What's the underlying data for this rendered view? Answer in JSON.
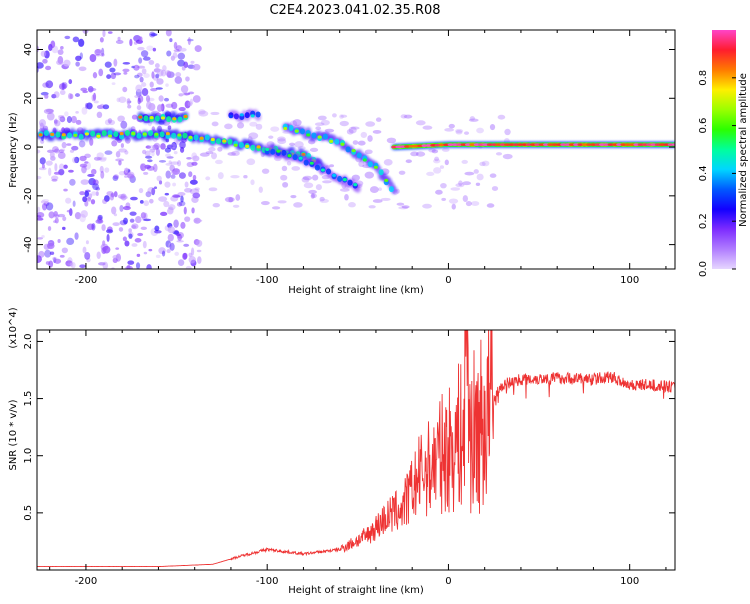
{
  "title": "C2E4.2023.041.02.35.R08",
  "colors": {
    "line": "#ee3333",
    "axis": "#000000",
    "colorbar": [
      "#e6d6ff",
      "#b07cff",
      "#7d2cff",
      "#1200ff",
      "#0059ff",
      "#00d6ff",
      "#00ff9c",
      "#2bff00",
      "#9bff00",
      "#ffef00",
      "#ff7a00",
      "#ff1c2e",
      "#ff44c8"
    ]
  },
  "chart_data": [
    {
      "type": "heatmap",
      "title": "C2E4.2023.041.02.35.R08",
      "xlabel": "Height of straight line (km)",
      "ylabel": "Frequency (Hz)",
      "xlim": [
        -227,
        125
      ],
      "ylim": [
        -50,
        48
      ],
      "xticks": [
        -200,
        -100,
        0,
        100
      ],
      "xtick_labels": [
        "-200",
        "-100",
        "0",
        "100"
      ],
      "yticks": [
        -40,
        -20,
        0,
        20,
        40
      ],
      "ytick_labels": [
        "-40",
        "-20",
        "0",
        "20",
        "40"
      ],
      "colorbar": {
        "label": "Normalized spectral amplitude",
        "range": [
          0,
          1
        ],
        "ticks": [
          0.0,
          0.2,
          0.4,
          0.6,
          0.8
        ],
        "tick_labels": [
          "0.0",
          "0.2",
          "0.4",
          "0.6",
          "0.8"
        ]
      },
      "features": [
        {
          "name": "main-band",
          "points": [
            [
              -225,
              5
            ],
            [
              -150,
              5
            ],
            [
              -130,
              3
            ],
            [
              -100,
              -1
            ],
            [
              -80,
              -3
            ],
            [
              -70,
              -8
            ]
          ],
          "amplitude": 0.7
        },
        {
          "name": "upper-branch",
          "points": [
            [
              -170,
              12
            ],
            [
              -145,
              12
            ]
          ],
          "amplitude": 0.75
        },
        {
          "name": "descending-branch",
          "points": [
            [
              -90,
              8
            ],
            [
              -60,
              2
            ],
            [
              -40,
              -8
            ],
            [
              -30,
              -18
            ]
          ],
          "amplitude": 0.6
        },
        {
          "name": "lower-track",
          "points": [
            [
              -100,
              -1
            ],
            [
              -80,
              -5
            ],
            [
              -60,
              -13
            ],
            [
              -50,
              -16
            ]
          ],
          "amplitude": 0.45
        },
        {
          "name": "tail-upper",
          "points": [
            [
              -120,
              13
            ],
            [
              -105,
              13
            ]
          ],
          "amplitude": 0.35
        },
        {
          "name": "steady-tone",
          "points": [
            [
              -30,
              0
            ],
            [
              0,
              1
            ],
            [
              30,
              1
            ],
            [
              80,
              1
            ],
            [
              125,
              1
            ]
          ],
          "amplitude": 0.9
        }
      ]
    },
    {
      "type": "line",
      "xlabel": "Height of straight line (km)",
      "ylabel": "SNR (10 * v/v)",
      "y_multiplier_label": "(x10^4)",
      "xlim": [
        -227,
        125
      ],
      "ylim": [
        0,
        2.1
      ],
      "xticks": [
        -200,
        -100,
        0,
        100
      ],
      "xtick_labels": [
        "-200",
        "-100",
        "0",
        "100"
      ],
      "yticks": [
        0.5,
        1.0,
        1.5,
        2.0
      ],
      "ytick_labels": [
        "0.5",
        "1.0",
        "1.5",
        "2.0"
      ],
      "series": [
        {
          "name": "SNR",
          "x": [
            -227,
            -200,
            -160,
            -130,
            -115,
            -100,
            -80,
            -60,
            -45,
            -35,
            -25,
            -20,
            -15,
            -10,
            -5,
            0,
            5,
            10,
            15,
            20,
            25,
            30,
            40,
            60,
            80,
            90,
            100,
            110,
            125
          ],
          "y": [
            0.03,
            0.03,
            0.03,
            0.05,
            0.12,
            0.18,
            0.14,
            0.18,
            0.3,
            0.45,
            0.55,
            0.7,
            0.85,
            0.9,
            1.0,
            1.05,
            1.15,
            1.2,
            1.2,
            1.3,
            1.5,
            1.62,
            1.67,
            1.68,
            1.67,
            1.69,
            1.62,
            1.62,
            1.6
          ]
        }
      ]
    }
  ]
}
